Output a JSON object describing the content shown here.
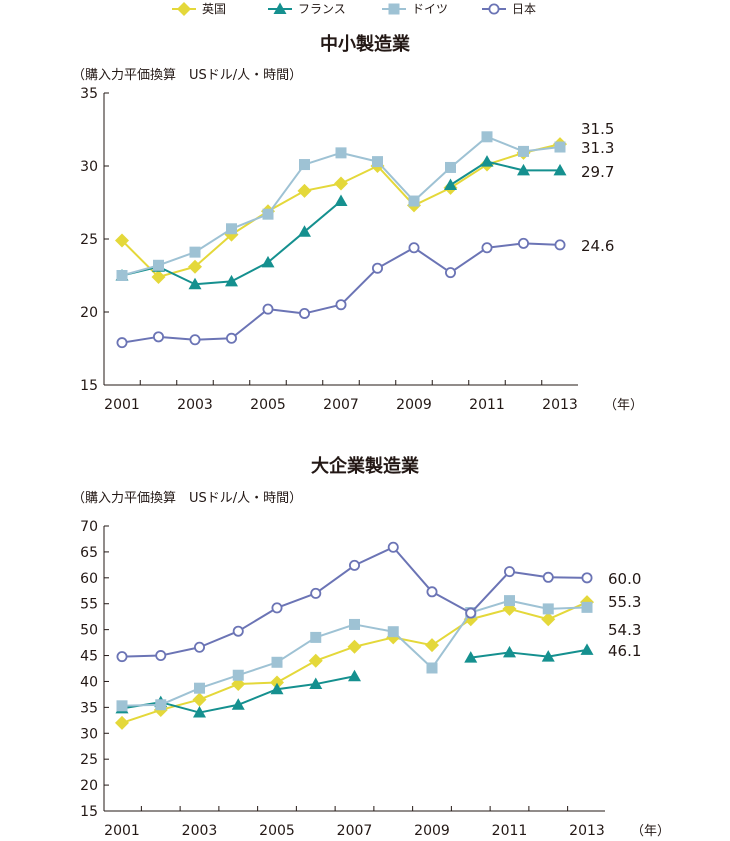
{
  "legend": [
    {
      "name": "英国",
      "color": "#e4d83a",
      "marker": "diamond"
    },
    {
      "name": "フランス",
      "color": "#15908f",
      "marker": "triangle"
    },
    {
      "name": "ドイツ",
      "color": "#9ec2d4",
      "marker": "square"
    },
    {
      "name": "日本",
      "color": "#6b74b5",
      "marker": "circle"
    }
  ],
  "year_unit": "（年）",
  "chart_data": [
    {
      "type": "line",
      "title": "中小製造業",
      "ylabel": "（購入力平価換算　USドル/人・時間）",
      "x": [
        2001,
        2002,
        2003,
        2004,
        2005,
        2006,
        2007,
        2008,
        2009,
        2010,
        2011,
        2012,
        2013
      ],
      "xticks": [
        "2001",
        "2003",
        "2005",
        "2007",
        "2009",
        "2011",
        "2013"
      ],
      "ylim": [
        15,
        35
      ],
      "yticks": [
        15,
        20,
        25,
        30,
        35
      ],
      "series": [
        {
          "name": "英国",
          "values": [
            24.9,
            22.4,
            23.1,
            25.3,
            26.9,
            28.3,
            28.8,
            30.0,
            27.3,
            28.5,
            30.1,
            30.9,
            31.5
          ]
        },
        {
          "name": "フランス",
          "values": [
            22.5,
            23.1,
            21.9,
            22.1,
            23.4,
            25.5,
            27.6,
            null,
            null,
            28.7,
            30.3,
            29.7,
            29.7
          ]
        },
        {
          "name": "ドイツ",
          "values": [
            22.5,
            23.2,
            24.1,
            25.7,
            26.7,
            30.1,
            30.9,
            30.3,
            27.6,
            29.9,
            32.0,
            31.0,
            31.3
          ]
        },
        {
          "name": "日本",
          "values": [
            17.9,
            18.3,
            18.1,
            18.2,
            20.2,
            19.9,
            20.5,
            23.0,
            24.4,
            22.7,
            24.4,
            24.7,
            24.6
          ]
        }
      ],
      "end_labels": [
        "31.5",
        "31.3",
        "29.7",
        "24.6"
      ]
    },
    {
      "type": "line",
      "title": "大企業製造業",
      "ylabel": "（購入力平価換算　USドル/人・時間）",
      "x": [
        2001,
        2002,
        2003,
        2004,
        2005,
        2006,
        2007,
        2008,
        2009,
        2010,
        2011,
        2012,
        2013
      ],
      "xticks": [
        "2001",
        "2003",
        "2005",
        "2007",
        "2009",
        "2011",
        "2013"
      ],
      "ylim": [
        15,
        70
      ],
      "yticks": [
        15,
        20,
        25,
        30,
        35,
        40,
        45,
        50,
        55,
        60,
        65,
        70
      ],
      "series": [
        {
          "name": "英国",
          "values": [
            32.0,
            34.5,
            36.5,
            39.5,
            39.8,
            44.0,
            46.7,
            48.5,
            47.0,
            52.0,
            54.0,
            52.0,
            55.3
          ]
        },
        {
          "name": "フランス",
          "values": [
            34.8,
            36.0,
            34.0,
            35.5,
            38.5,
            39.5,
            41.0,
            null,
            null,
            44.6,
            45.6,
            44.8,
            46.1
          ]
        },
        {
          "name": "ドイツ",
          "values": [
            35.3,
            35.5,
            38.7,
            41.2,
            43.7,
            48.5,
            51.0,
            49.6,
            42.6,
            53.3,
            55.6,
            54.0,
            54.3
          ]
        },
        {
          "name": "日本",
          "values": [
            44.8,
            45.0,
            46.6,
            49.7,
            54.2,
            57.0,
            62.4,
            65.9,
            57.3,
            53.2,
            61.2,
            60.1,
            60.0
          ]
        }
      ],
      "end_labels": [
        "60.0",
        "55.3",
        "54.3",
        "46.1"
      ]
    }
  ]
}
